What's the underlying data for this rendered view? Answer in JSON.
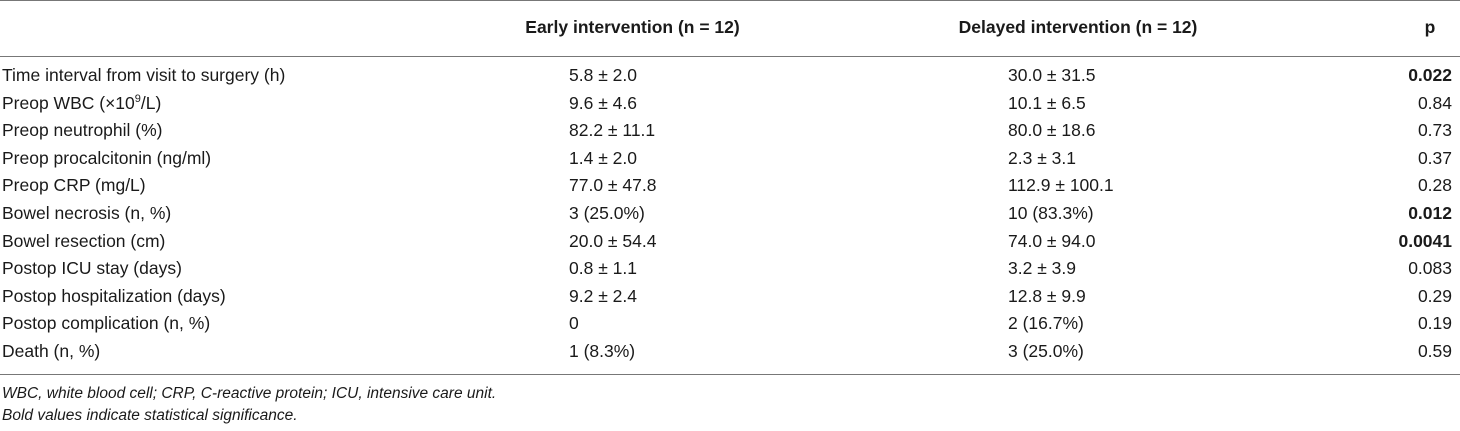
{
  "table": {
    "headers": {
      "label": "",
      "early": "Early intervention (n = 12)",
      "delayed": "Delayed intervention (n = 12)",
      "p": "p"
    },
    "rows": [
      {
        "label": "Time interval from visit to surgery (h)",
        "early": "5.8 ± 2.0",
        "delayed": "30.0 ± 31.5",
        "p": "0.022",
        "significant": true
      },
      {
        "label_pre": "Preop WBC (×10",
        "label_sup": "9",
        "label_post": "/L)",
        "early": "9.6 ± 4.6",
        "delayed": "10.1 ± 6.5",
        "p": "0.84",
        "significant": false
      },
      {
        "label": "Preop neutrophil (%)",
        "early": "82.2 ± 11.1",
        "delayed": "80.0 ± 18.6",
        "p": "0.73",
        "significant": false
      },
      {
        "label": "Preop procalcitonin (ng/ml)",
        "early": "1.4 ± 2.0",
        "delayed": "2.3 ± 3.1",
        "p": "0.37",
        "significant": false
      },
      {
        "label": "Preop CRP (mg/L)",
        "early": "77.0 ± 47.8",
        "delayed": "112.9 ± 100.1",
        "p": "0.28",
        "significant": false
      },
      {
        "label": "Bowel necrosis (n, %)",
        "early": "3 (25.0%)",
        "delayed": "10 (83.3%)",
        "p": "0.012",
        "significant": true
      },
      {
        "label": "Bowel resection (cm)",
        "early": "20.0 ± 54.4",
        "delayed": "74.0 ± 94.0",
        "p": "0.0041",
        "significant": true
      },
      {
        "label": "Postop ICU stay (days)",
        "early": "0.8 ± 1.1",
        "delayed": "3.2 ± 3.9",
        "p": "0.083",
        "significant": false
      },
      {
        "label": "Postop hospitalization (days)",
        "early": "9.2 ± 2.4",
        "delayed": "12.8 ± 9.9",
        "p": "0.29",
        "significant": false
      },
      {
        "label": "Postop complication (n, %)",
        "early": "0",
        "delayed": "2 (16.7%)",
        "p": "0.19",
        "significant": false
      },
      {
        "label": "Death (n, %)",
        "early": "1 (8.3%)",
        "delayed": "3 (25.0%)",
        "p": "0.59",
        "significant": false
      }
    ]
  },
  "footnotes": {
    "abbreviations": "WBC, white blood cell; CRP, C-reactive protein; ICU, intensive care unit.",
    "bold_note": "Bold values indicate statistical significance."
  }
}
